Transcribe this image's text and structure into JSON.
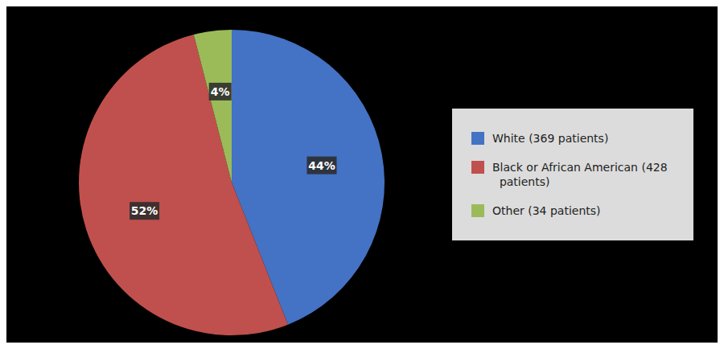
{
  "chart_data": {
    "type": "pie",
    "categories": [
      "White (369 patients)",
      "Black or African American (428\n  patients)",
      "Other (34 patients)"
    ],
    "values": [
      44,
      52,
      4
    ],
    "value_labels": [
      "44%",
      "52%",
      "4%"
    ],
    "colors": [
      "#4472C4",
      "#C0504D",
      "#9BBB59"
    ],
    "data_labels": true,
    "legend": "right"
  }
}
